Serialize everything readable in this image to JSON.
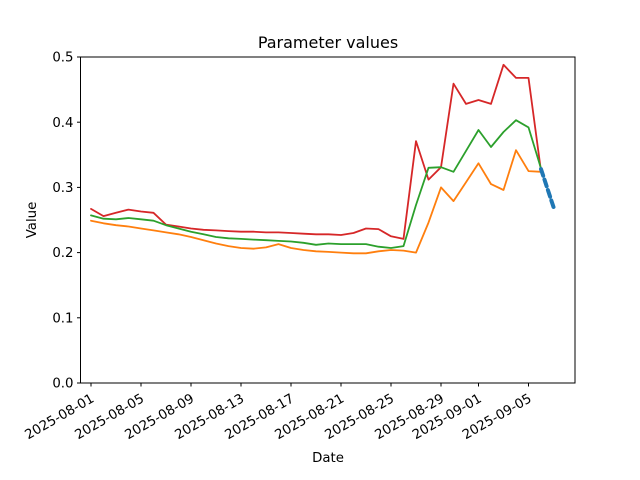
{
  "chart_data": {
    "type": "line",
    "title": "Parameter values",
    "xlabel": "Date",
    "ylabel": "Value",
    "ylim": [
      0.0,
      0.5
    ],
    "yticks": [
      0.0,
      0.1,
      0.2,
      0.3,
      0.4,
      0.5
    ],
    "ytick_labels": [
      "0.0",
      "0.1",
      "0.2",
      "0.3",
      "0.4",
      "0.5"
    ],
    "xtick_labels": [
      "2025-08-01",
      "2025-08-05",
      "2025-08-09",
      "2025-08-13",
      "2025-08-17",
      "2025-08-21",
      "2025-08-25",
      "2025-08-29",
      "2025-09-01",
      "2025-09-05"
    ],
    "grid": false,
    "legend": "none",
    "axis_color": "#000000",
    "background_color": "#ffffff",
    "x": [
      "2025-08-01",
      "2025-08-02",
      "2025-08-03",
      "2025-08-04",
      "2025-08-05",
      "2025-08-06",
      "2025-08-07",
      "2025-08-08",
      "2025-08-09",
      "2025-08-10",
      "2025-08-11",
      "2025-08-12",
      "2025-08-13",
      "2025-08-14",
      "2025-08-15",
      "2025-08-16",
      "2025-08-17",
      "2025-08-18",
      "2025-08-19",
      "2025-08-20",
      "2025-08-21",
      "2025-08-22",
      "2025-08-23",
      "2025-08-24",
      "2025-08-25",
      "2025-08-26",
      "2025-08-27",
      "2025-08-28",
      "2025-08-29",
      "2025-08-30",
      "2025-08-31",
      "2025-09-01",
      "2025-09-02",
      "2025-09-03",
      "2025-09-04",
      "2025-09-05",
      "2025-09-06"
    ],
    "series": [
      {
        "name": "red-parameter-line",
        "color": "#d62728",
        "style": "solid",
        "width": 1.8,
        "values": [
          0.267,
          0.256,
          0.261,
          0.266,
          0.263,
          0.261,
          0.243,
          0.24,
          0.237,
          0.235,
          0.234,
          0.233,
          0.232,
          0.232,
          0.231,
          0.231,
          0.23,
          0.229,
          0.228,
          0.228,
          0.227,
          0.23,
          0.237,
          0.236,
          0.225,
          0.221,
          0.371,
          0.312,
          0.331,
          0.459,
          0.428,
          0.434,
          0.428,
          0.488,
          0.468,
          0.468,
          0.325
        ]
      },
      {
        "name": "green-parameter-line",
        "color": "#2ca02c",
        "style": "solid",
        "width": 1.8,
        "values": [
          0.257,
          0.252,
          0.251,
          0.253,
          0.251,
          0.249,
          0.242,
          0.237,
          0.232,
          0.228,
          0.224,
          0.222,
          0.221,
          0.22,
          0.219,
          0.218,
          0.217,
          0.215,
          0.212,
          0.214,
          0.213,
          0.213,
          0.213,
          0.209,
          0.207,
          0.21,
          0.273,
          0.33,
          0.331,
          0.324,
          0.356,
          0.388,
          0.362,
          0.385,
          0.403,
          0.392,
          0.329
        ]
      },
      {
        "name": "orange-parameter-line",
        "color": "#ff7f0e",
        "style": "solid",
        "width": 1.8,
        "values": [
          0.249,
          0.245,
          0.242,
          0.24,
          0.237,
          0.234,
          0.231,
          0.228,
          0.224,
          0.219,
          0.214,
          0.21,
          0.207,
          0.206,
          0.208,
          0.213,
          0.207,
          0.204,
          0.202,
          0.201,
          0.2,
          0.199,
          0.199,
          0.202,
          0.204,
          0.203,
          0.2,
          0.246,
          0.3,
          0.279,
          0.308,
          0.337,
          0.305,
          0.296,
          0.357,
          0.325,
          0.324
        ]
      },
      {
        "name": "blue-forecast-segment",
        "color": "#1f77b4",
        "style": "dashed",
        "width": 4,
        "x": [
          "2025-09-06",
          "2025-09-07"
        ],
        "values": [
          0.328,
          0.27
        ]
      }
    ]
  }
}
